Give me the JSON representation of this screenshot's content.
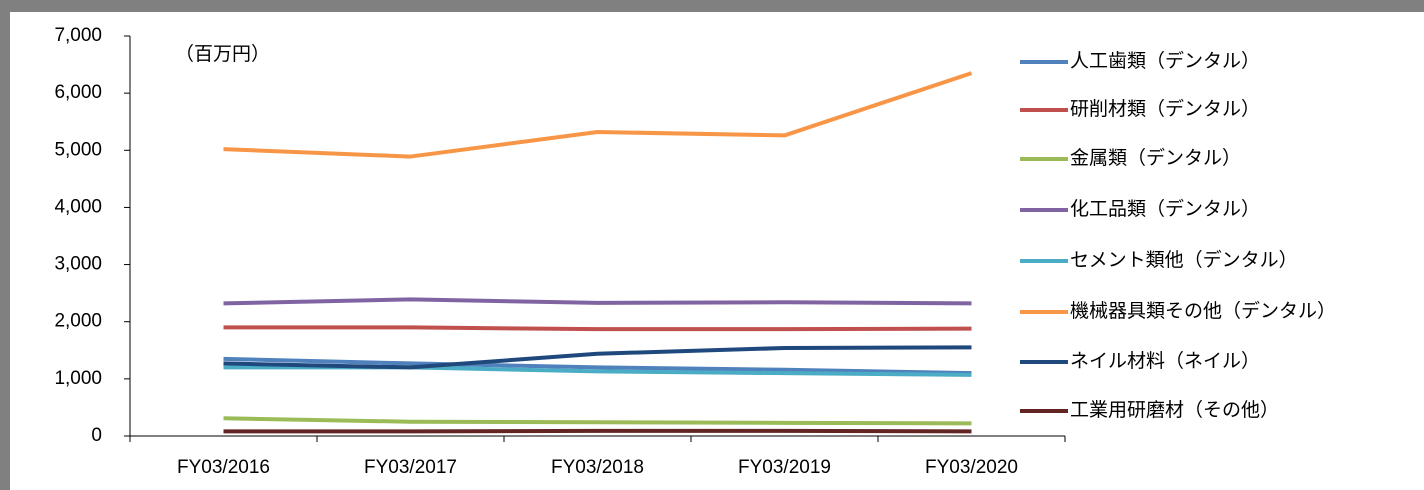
{
  "chart_data": {
    "type": "line",
    "annotation": "（百万円）",
    "categories": [
      "FY03/2016",
      "FY03/2017",
      "FY03/2018",
      "FY03/2019",
      "FY03/2020"
    ],
    "series": [
      {
        "name": "人工歯類（デンタル）",
        "color": "#4f81bd",
        "values": [
          1350,
          1270,
          1200,
          1160,
          1100
        ]
      },
      {
        "name": "研削材類（デンタル）",
        "color": "#c0504d",
        "values": [
          1900,
          1900,
          1870,
          1870,
          1880
        ]
      },
      {
        "name": "金属類（デンタル）",
        "color": "#9bbb59",
        "values": [
          310,
          250,
          240,
          230,
          220
        ]
      },
      {
        "name": "化工品類（デンタル）",
        "color": "#8064a2",
        "values": [
          2320,
          2390,
          2330,
          2340,
          2320
        ]
      },
      {
        "name": "セメント類他（デンタル）",
        "color": "#4bacc6",
        "values": [
          1200,
          1200,
          1130,
          1100,
          1070
        ]
      },
      {
        "name": "機械器具類その他（デンタル）",
        "color": "#f79646",
        "values": [
          5020,
          4890,
          5320,
          5260,
          6350
        ]
      },
      {
        "name": "ネイル材料（ネイル）",
        "color": "#1f497d",
        "values": [
          1270,
          1200,
          1440,
          1540,
          1550
        ]
      },
      {
        "name": "工業用研磨材（その他）",
        "color": "#632523",
        "values": [
          80,
          80,
          90,
          90,
          80
        ]
      }
    ],
    "ylim": [
      0,
      7000
    ],
    "yticks": [
      0,
      {
        "value": 1000,
        "label": "1,000"
      },
      {
        "value": 2000,
        "label": "2,000"
      },
      {
        "value": 3000,
        "label": "3,000"
      },
      {
        "value": 4000,
        "label": "4,000"
      },
      {
        "value": 5000,
        "label": "5,000"
      },
      {
        "value": 6000,
        "label": "6,000"
      },
      {
        "value": 7000,
        "label": "7,000"
      }
    ],
    "legend": "right",
    "grid": false
  }
}
